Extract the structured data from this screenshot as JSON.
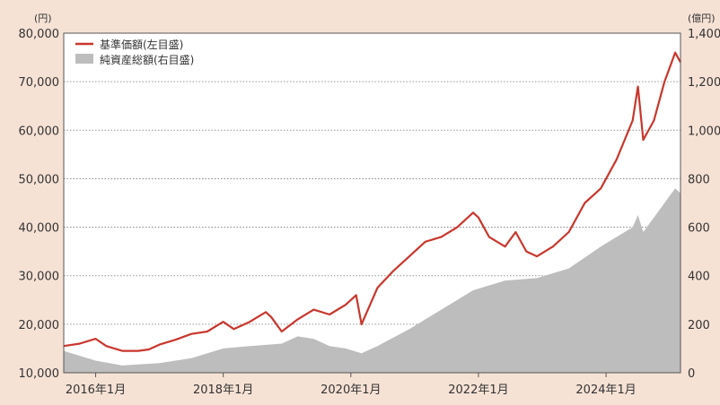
{
  "chart_data": {
    "type": "line",
    "left_unit": "(円)",
    "right_unit": "(億円)",
    "y_left": {
      "min": 10000,
      "max": 80000,
      "ticks": [
        "10,000",
        "20,000",
        "30,000",
        "40,000",
        "50,000",
        "60,000",
        "70,000",
        "80,000"
      ]
    },
    "y_right": {
      "min": 0,
      "max": 1400,
      "ticks": [
        "0",
        "200",
        "400",
        "600",
        "800",
        "1,000",
        "1,200",
        "1,400"
      ]
    },
    "x_axis": {
      "range": [
        "2015-07",
        "2025-03"
      ],
      "tick_labels": [
        "2016年1月",
        "2018年1月",
        "2020年1月",
        "2022年1月",
        "2024年1月"
      ],
      "tick_dates": [
        "2016-01",
        "2018-01",
        "2020-01",
        "2022-01",
        "2024-01"
      ]
    },
    "grid": "horizontal dotted",
    "legend_position": "top-left",
    "legend": [
      {
        "label": "基準価額(左目盛)",
        "type": "line",
        "color": "#c8372d"
      },
      {
        "label": "純資産総額(右目盛)",
        "type": "area",
        "color": "#bdbdbd"
      }
    ],
    "series": [
      {
        "name": "基準価額(左目盛)",
        "axis": "left",
        "color": "#c8372d",
        "x": [
          "2015-07",
          "2015-10",
          "2016-01",
          "2016-03",
          "2016-06",
          "2016-09",
          "2016-11",
          "2017-01",
          "2017-04",
          "2017-07",
          "2017-10",
          "2018-01",
          "2018-03",
          "2018-06",
          "2018-09",
          "2018-10",
          "2018-12",
          "2019-03",
          "2019-06",
          "2019-09",
          "2019-12",
          "2020-02",
          "2020-03",
          "2020-06",
          "2020-09",
          "2020-12",
          "2021-03",
          "2021-06",
          "2021-09",
          "2021-12",
          "2022-01",
          "2022-03",
          "2022-06",
          "2022-08",
          "2022-10",
          "2022-12",
          "2023-03",
          "2023-06",
          "2023-09",
          "2023-12",
          "2024-03",
          "2024-06",
          "2024-07",
          "2024-08",
          "2024-10",
          "2024-12",
          "2025-02",
          "2025-03"
        ],
        "values": [
          15500,
          16000,
          17000,
          15500,
          14500,
          14500,
          14800,
          15800,
          16800,
          18000,
          18500,
          20500,
          19000,
          20500,
          22500,
          21500,
          18500,
          21000,
          23000,
          22000,
          24000,
          26000,
          20000,
          27500,
          31000,
          34000,
          37000,
          38000,
          40000,
          43000,
          42000,
          38000,
          36000,
          39000,
          35000,
          34000,
          36000,
          39000,
          45000,
          48000,
          54000,
          62000,
          69000,
          58000,
          62000,
          70000,
          76000,
          74000
        ]
      },
      {
        "name": "純資産総額(右目盛)",
        "axis": "right",
        "color": "#bdbdbd",
        "x": [
          "2015-07",
          "2016-01",
          "2016-06",
          "2017-01",
          "2017-07",
          "2018-01",
          "2018-06",
          "2018-12",
          "2019-03",
          "2019-06",
          "2019-09",
          "2019-12",
          "2020-03",
          "2020-06",
          "2020-12",
          "2021-06",
          "2021-12",
          "2022-06",
          "2022-12",
          "2023-06",
          "2023-12",
          "2024-03",
          "2024-06",
          "2024-07",
          "2024-08",
          "2024-10",
          "2024-12",
          "2025-02",
          "2025-03"
        ],
        "values": [
          90,
          50,
          30,
          40,
          60,
          100,
          110,
          120,
          150,
          140,
          110,
          100,
          80,
          110,
          180,
          260,
          340,
          380,
          390,
          430,
          520,
          560,
          600,
          650,
          580,
          640,
          700,
          760,
          740
        ]
      }
    ]
  }
}
